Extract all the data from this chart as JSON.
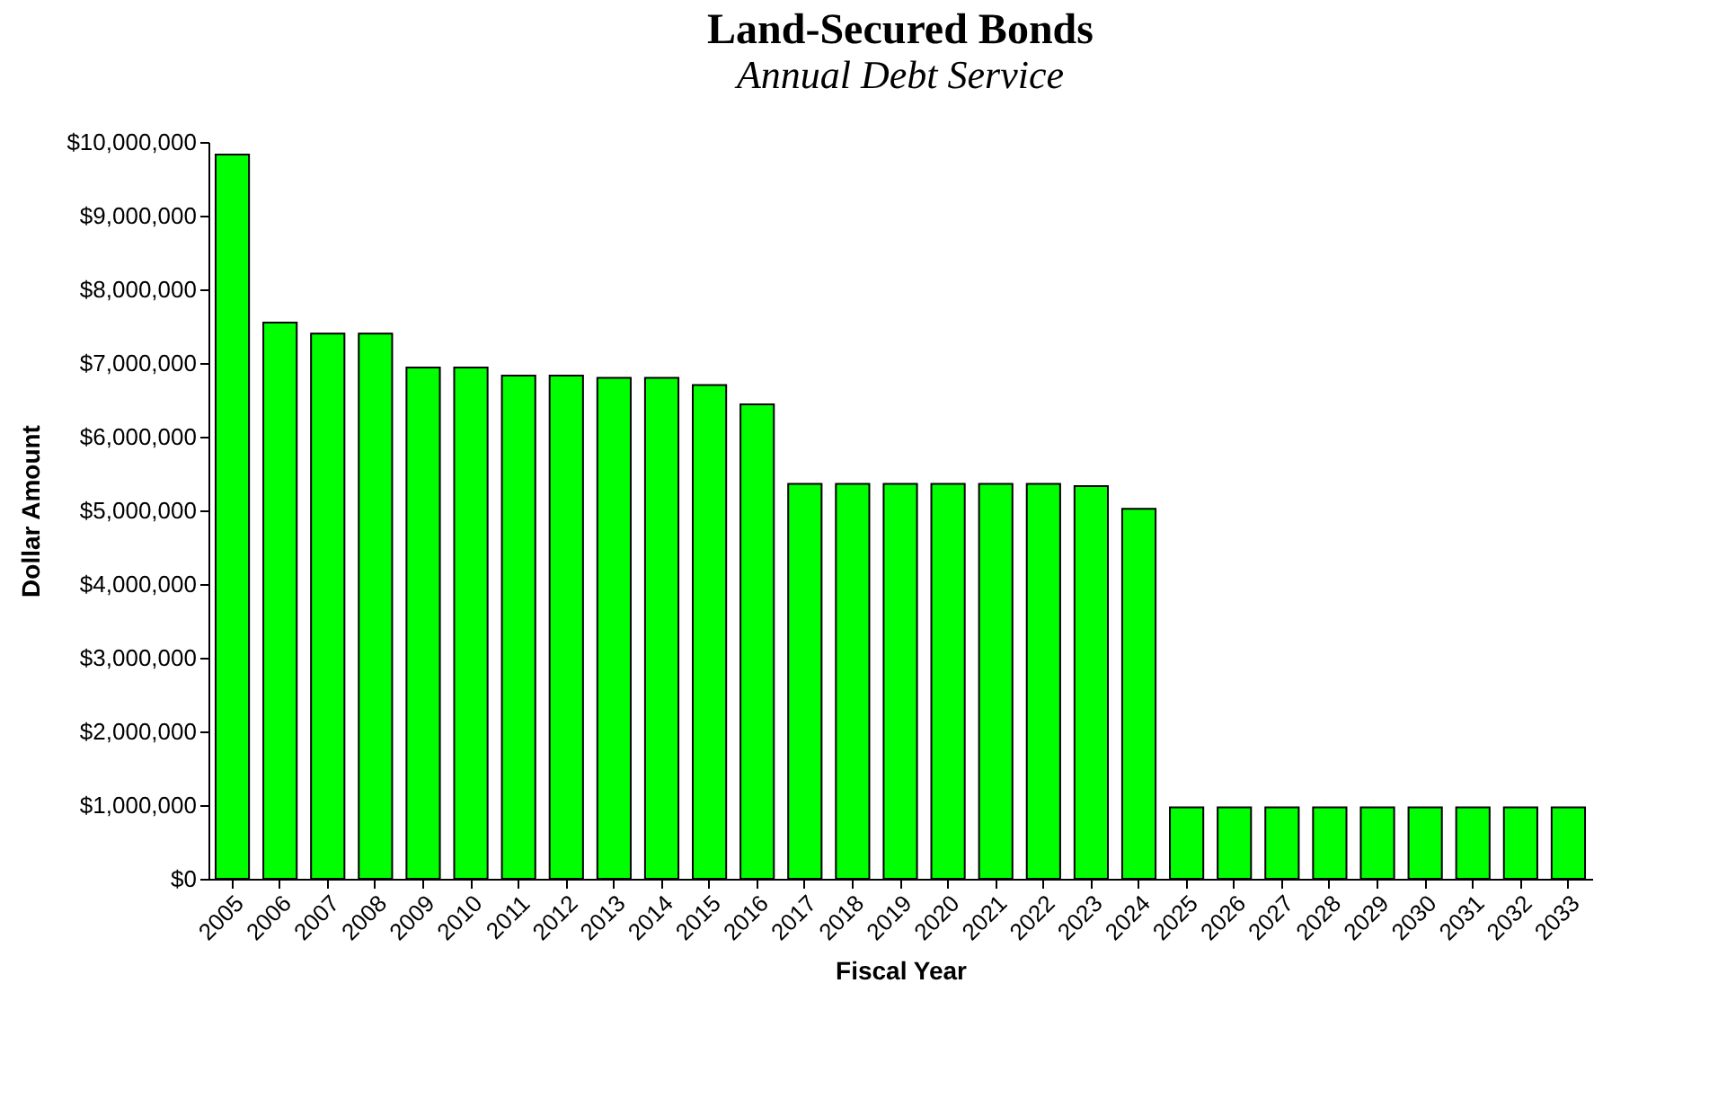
{
  "chart_data": {
    "type": "bar",
    "title": "Land-Secured Bonds",
    "subtitle": "Annual Debt Service",
    "xlabel": "Fiscal Year",
    "ylabel": "Dollar Amount",
    "categories": [
      "2005",
      "2006",
      "2007",
      "2008",
      "2009",
      "2010",
      "2011",
      "2012",
      "2013",
      "2014",
      "2015",
      "2016",
      "2017",
      "2018",
      "2019",
      "2020",
      "2021",
      "2022",
      "2023",
      "2024",
      "2025",
      "2026",
      "2027",
      "2028",
      "2029",
      "2030",
      "2031",
      "2032",
      "2033"
    ],
    "values": [
      9830000,
      7550000,
      7400000,
      7400000,
      6940000,
      6940000,
      6830000,
      6830000,
      6800000,
      6800000,
      6700000,
      6440000,
      5360000,
      5360000,
      5360000,
      5360000,
      5360000,
      5360000,
      5330000,
      5020000,
      970000,
      970000,
      970000,
      970000,
      970000,
      970000,
      970000,
      970000,
      970000
    ],
    "color": "#00ff00",
    "ylim": [
      0,
      10000000
    ],
    "yticks": [
      {
        "value": 0,
        "label": "$0"
      },
      {
        "value": 1000000,
        "label": "$1,000,000"
      },
      {
        "value": 2000000,
        "label": "$2,000,000"
      },
      {
        "value": 3000000,
        "label": "$3,000,000"
      },
      {
        "value": 4000000,
        "label": "$4,000,000"
      },
      {
        "value": 5000000,
        "label": "$5,000,000"
      },
      {
        "value": 6000000,
        "label": "$6,000,000"
      },
      {
        "value": 7000000,
        "label": "$7,000,000"
      },
      {
        "value": 8000000,
        "label": "$8,000,000"
      },
      {
        "value": 9000000,
        "label": "$9,000,000"
      },
      {
        "value": 10000000,
        "label": "$10,000,000"
      }
    ],
    "grid": false
  }
}
